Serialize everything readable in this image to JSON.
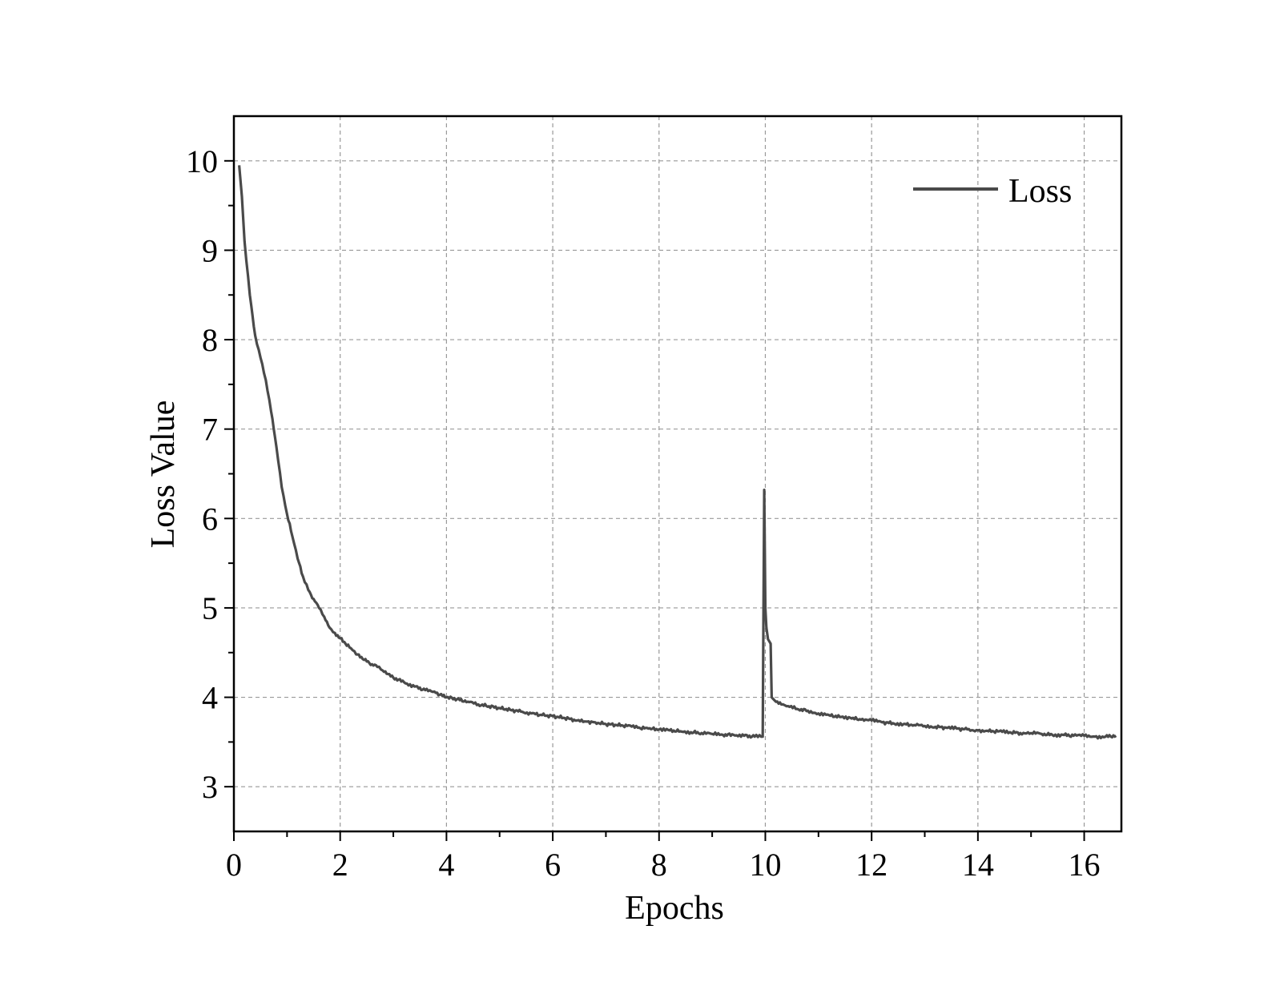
{
  "chart_data": {
    "type": "line",
    "xlabel": "Epochs",
    "ylabel": "Loss Value",
    "xlim": [
      0,
      16.7
    ],
    "ylim": [
      2.5,
      10.5
    ],
    "xticks": [
      0,
      2,
      4,
      6,
      8,
      10,
      12,
      14,
      16
    ],
    "yticks": [
      3,
      4,
      5,
      6,
      7,
      8,
      9,
      10
    ],
    "grid": true,
    "legend_position": "top-right",
    "line_color": "#4a4a4a",
    "series": [
      {
        "name": "Loss",
        "x": [
          0.1,
          0.15,
          0.2,
          0.3,
          0.4,
          0.5,
          0.6,
          0.7,
          0.8,
          0.9,
          1.0,
          1.1,
          1.2,
          1.3,
          1.4,
          1.5,
          1.6,
          1.7,
          1.8,
          1.9,
          2.0,
          2.1,
          2.2,
          2.3,
          2.4,
          2.5,
          2.6,
          2.7,
          2.8,
          2.9,
          3.0,
          3.2,
          3.4,
          3.6,
          3.8,
          4.0,
          4.2,
          4.4,
          4.6,
          4.8,
          5.0,
          5.2,
          5.4,
          5.6,
          5.8,
          6.0,
          6.2,
          6.4,
          6.6,
          6.8,
          7.0,
          7.2,
          7.4,
          7.6,
          7.8,
          8.0,
          8.2,
          8.4,
          8.6,
          8.8,
          9.0,
          9.2,
          9.4,
          9.6,
          9.8,
          9.95,
          9.98,
          10.0,
          10.02,
          10.05,
          10.1,
          10.12,
          10.15,
          10.2,
          10.3,
          10.4,
          10.6,
          10.8,
          11.0,
          11.2,
          11.4,
          11.6,
          11.8,
          12.0,
          12.2,
          12.4,
          12.6,
          12.8,
          13.0,
          13.2,
          13.4,
          13.6,
          13.8,
          14.0,
          14.2,
          14.4,
          14.6,
          14.8,
          15.0,
          15.2,
          15.4,
          15.6,
          15.8,
          16.0,
          16.2,
          16.4,
          16.6
        ],
        "y": [
          9.95,
          9.6,
          9.1,
          8.5,
          8.05,
          7.8,
          7.55,
          7.2,
          6.8,
          6.35,
          6.05,
          5.8,
          5.55,
          5.35,
          5.2,
          5.1,
          5.0,
          4.9,
          4.78,
          4.72,
          4.66,
          4.6,
          4.55,
          4.48,
          4.45,
          4.4,
          4.37,
          4.34,
          4.3,
          4.26,
          4.22,
          4.17,
          4.12,
          4.08,
          4.05,
          4.0,
          3.98,
          3.95,
          3.92,
          3.9,
          3.88,
          3.86,
          3.84,
          3.82,
          3.8,
          3.79,
          3.77,
          3.75,
          3.73,
          3.72,
          3.7,
          3.69,
          3.68,
          3.66,
          3.65,
          3.64,
          3.63,
          3.62,
          3.61,
          3.6,
          3.59,
          3.58,
          3.58,
          3.57,
          3.56,
          3.56,
          6.32,
          5.0,
          4.78,
          4.65,
          4.6,
          4.0,
          3.98,
          3.95,
          3.92,
          3.9,
          3.87,
          3.85,
          3.82,
          3.8,
          3.78,
          3.77,
          3.75,
          3.74,
          3.72,
          3.71,
          3.7,
          3.69,
          3.68,
          3.67,
          3.66,
          3.65,
          3.64,
          3.63,
          3.62,
          3.62,
          3.61,
          3.6,
          3.6,
          3.59,
          3.58,
          3.58,
          3.57,
          3.57,
          3.56,
          3.56,
          3.57
        ]
      }
    ]
  }
}
